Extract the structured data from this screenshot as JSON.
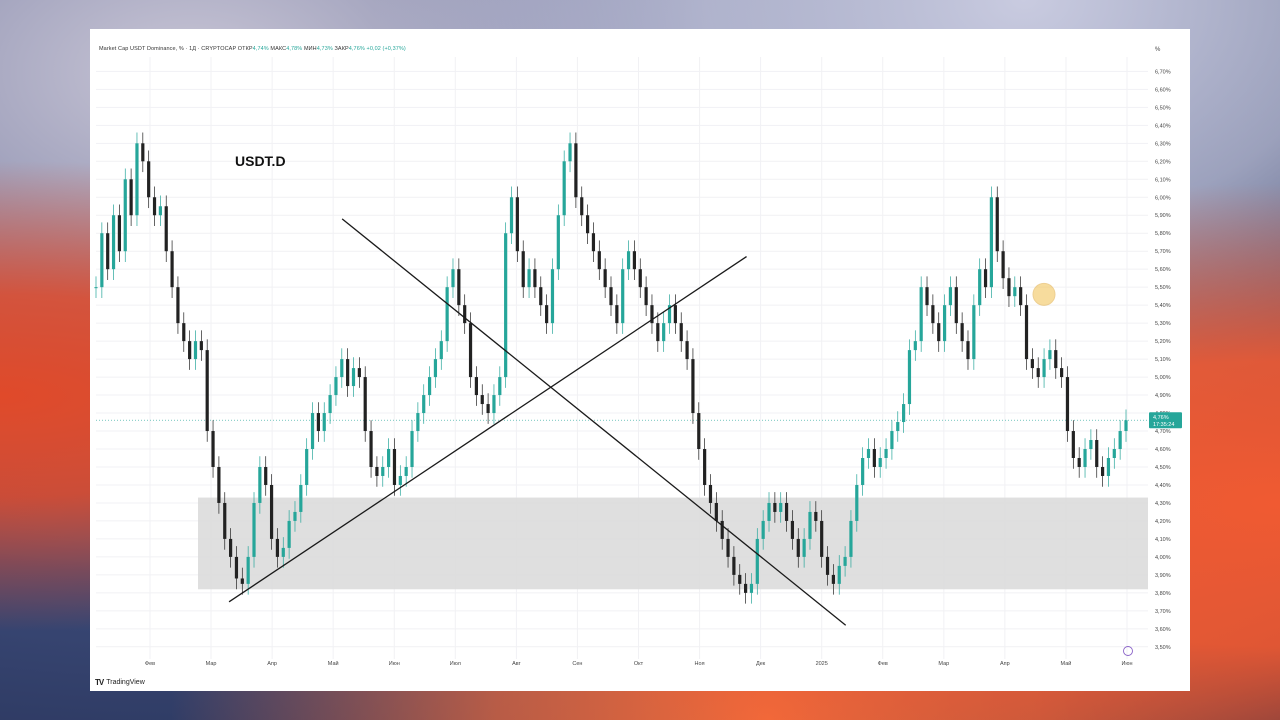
{
  "header": {
    "symbol": "Market Cap USDT Dominance, % · 1Д · CRYPTOCAP",
    "open_label": "ОТКР",
    "open": "4,74%",
    "high_label": "МАКС",
    "high": "4,78%",
    "low_label": "МИН",
    "low": "4,73%",
    "close_label": "ЗАКР",
    "close": "4,76%",
    "change": "+0,02 (+0,37%)"
  },
  "annotation": "USDT.D",
  "branding": "TradingView",
  "axis_unit": "%",
  "price_label": {
    "value": "4,76%",
    "timer": "17:35:24"
  },
  "colors": {
    "up": "#26a69a",
    "down": "#222222",
    "zone": "#dcdcdc",
    "trendline": "#1a1a1a",
    "marker": "#f2c14e",
    "price_tag": "#26a69a"
  },
  "chart_data": {
    "type": "line",
    "title": "",
    "xlabel": "",
    "ylabel": "",
    "ylim": [
      3.46,
      6.78
    ],
    "y_ticks": [
      "6,70%",
      "6,60%",
      "6,50%",
      "6,40%",
      "6,30%",
      "6,20%",
      "6,10%",
      "6,00%",
      "5,90%",
      "5,80%",
      "5,70%",
      "5,60%",
      "5,50%",
      "5,40%",
      "5,30%",
      "5,20%",
      "5,10%",
      "5,00%",
      "4,90%",
      "4,80%",
      "4,70%",
      "4,60%",
      "4,50%",
      "4,40%",
      "4,30%",
      "4,20%",
      "4,10%",
      "4,00%",
      "3,90%",
      "3,80%",
      "3,70%",
      "3,60%",
      "3,50%"
    ],
    "x_ticks": [
      "Фев",
      "Мар",
      "Апр",
      "Май",
      "Июн",
      "Июл",
      "Авг",
      "Сен",
      "Окт",
      "Ноя",
      "Дек",
      "2025",
      "Фев",
      "Мар",
      "Апр",
      "Май",
      "Июн"
    ],
    "series": [
      {
        "values": [
          5.5,
          5.8,
          5.6,
          5.9,
          5.7,
          6.1,
          5.9,
          6.3,
          6.2,
          6.0,
          5.9,
          5.95,
          5.7,
          5.5,
          5.3,
          5.2,
          5.1,
          5.2,
          5.15,
          4.7,
          4.5,
          4.3,
          4.1,
          4.0,
          3.88,
          3.85,
          4.0,
          4.3,
          4.5,
          4.4,
          4.1,
          4.0,
          4.05,
          4.2,
          4.25,
          4.4,
          4.6,
          4.8,
          4.7,
          4.8,
          4.9,
          5.0,
          5.1,
          4.95,
          5.05,
          5.0,
          4.7,
          4.5,
          4.45,
          4.5,
          4.6,
          4.4,
          4.45,
          4.5,
          4.7,
          4.8,
          4.9,
          5.0,
          5.1,
          5.2,
          5.5,
          5.6,
          5.4,
          5.3,
          5.0,
          4.9,
          4.85,
          4.8,
          4.9,
          5.0,
          5.8,
          6.0,
          5.7,
          5.5,
          5.6,
          5.5,
          5.4,
          5.3,
          5.6,
          5.9,
          6.2,
          6.3,
          6.0,
          5.9,
          5.8,
          5.7,
          5.6,
          5.5,
          5.4,
          5.3,
          5.6,
          5.7,
          5.6,
          5.5,
          5.4,
          5.3,
          5.2,
          5.3,
          5.4,
          5.3,
          5.2,
          5.1,
          4.8,
          4.6,
          4.4,
          4.3,
          4.2,
          4.1,
          4.0,
          3.9,
          3.85,
          3.8,
          3.85,
          4.1,
          4.2,
          4.3,
          4.25,
          4.3,
          4.2,
          4.1,
          4.0,
          4.1,
          4.25,
          4.2,
          4.0,
          3.9,
          3.85,
          3.95,
          4.0,
          4.2,
          4.4,
          4.55,
          4.6,
          4.5,
          4.55,
          4.6,
          4.7,
          4.75,
          4.85,
          5.15,
          5.2,
          5.5,
          5.4,
          5.3,
          5.2,
          5.4,
          5.5,
          5.3,
          5.2,
          5.1,
          5.4,
          5.6,
          5.5,
          6.0,
          5.7,
          5.55,
          5.45,
          5.5,
          5.4,
          5.1,
          5.05,
          5.0,
          5.1,
          5.15,
          5.05,
          5.0,
          4.7,
          4.55,
          4.5,
          4.6,
          4.65,
          4.5,
          4.45,
          4.55,
          4.6,
          4.7,
          4.76
        ]
      }
    ],
    "trendlines": [
      {
        "from": [
          "Мар",
          3.75
        ],
        "to": [
          "Ноя",
          5.67
        ]
      },
      {
        "from": [
          "2025",
          3.62
        ],
        "to": [
          "Апр",
          5.88
        ]
      }
    ],
    "zone": {
      "from": 3.82,
      "to": 4.33
    },
    "grid": true,
    "legend": "none"
  }
}
